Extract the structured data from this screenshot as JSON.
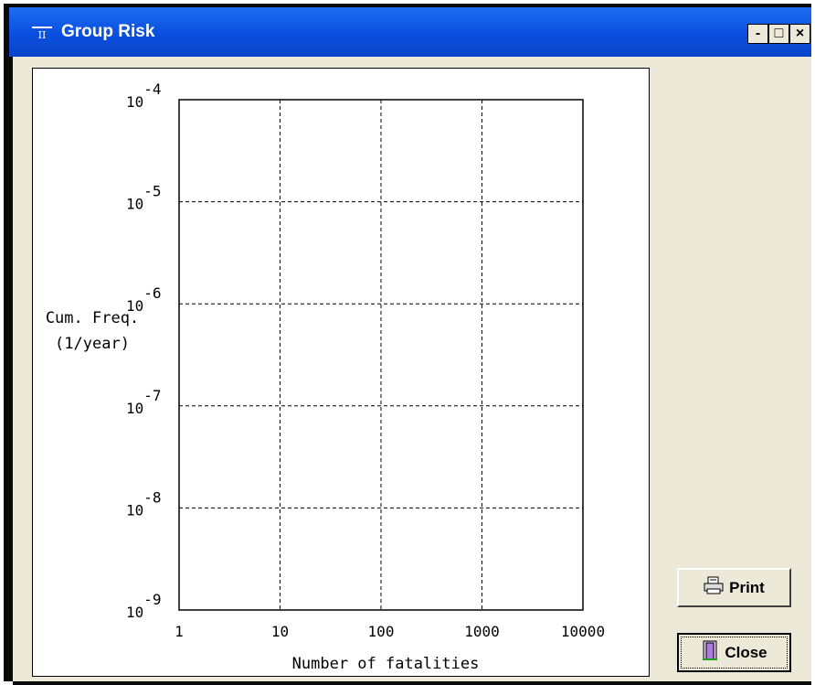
{
  "window": {
    "title": "Group Risk",
    "app_icon_text": "II",
    "controls": {
      "minimize": "-",
      "maximize": "□",
      "close": "×"
    }
  },
  "buttons": {
    "print_label": "Print",
    "close_label": "Close"
  },
  "chart_data": {
    "type": "line",
    "title": "",
    "xlabel": "Number of fatalities",
    "ylabel": "Cum. Freq. (1/year)",
    "ylabel_lines": [
      "Cum. Freq.",
      "(1/year)"
    ],
    "x_scale": "log",
    "y_scale": "log",
    "xlim": [
      1,
      10000
    ],
    "ylim": [
      1e-09,
      0.0001
    ],
    "x_ticks": [
      1,
      10,
      100,
      1000,
      10000
    ],
    "x_tick_labels": [
      "1",
      "10",
      "100",
      "1000",
      "10000"
    ],
    "y_ticks": [
      1e-09,
      1e-08,
      1e-07,
      1e-06,
      1e-05,
      0.0001
    ],
    "y_tick_exponents": [
      "-9",
      "-8",
      "-7",
      "-6",
      "-5",
      "-4"
    ],
    "y_tick_base": "10",
    "grid": true,
    "series": []
  }
}
